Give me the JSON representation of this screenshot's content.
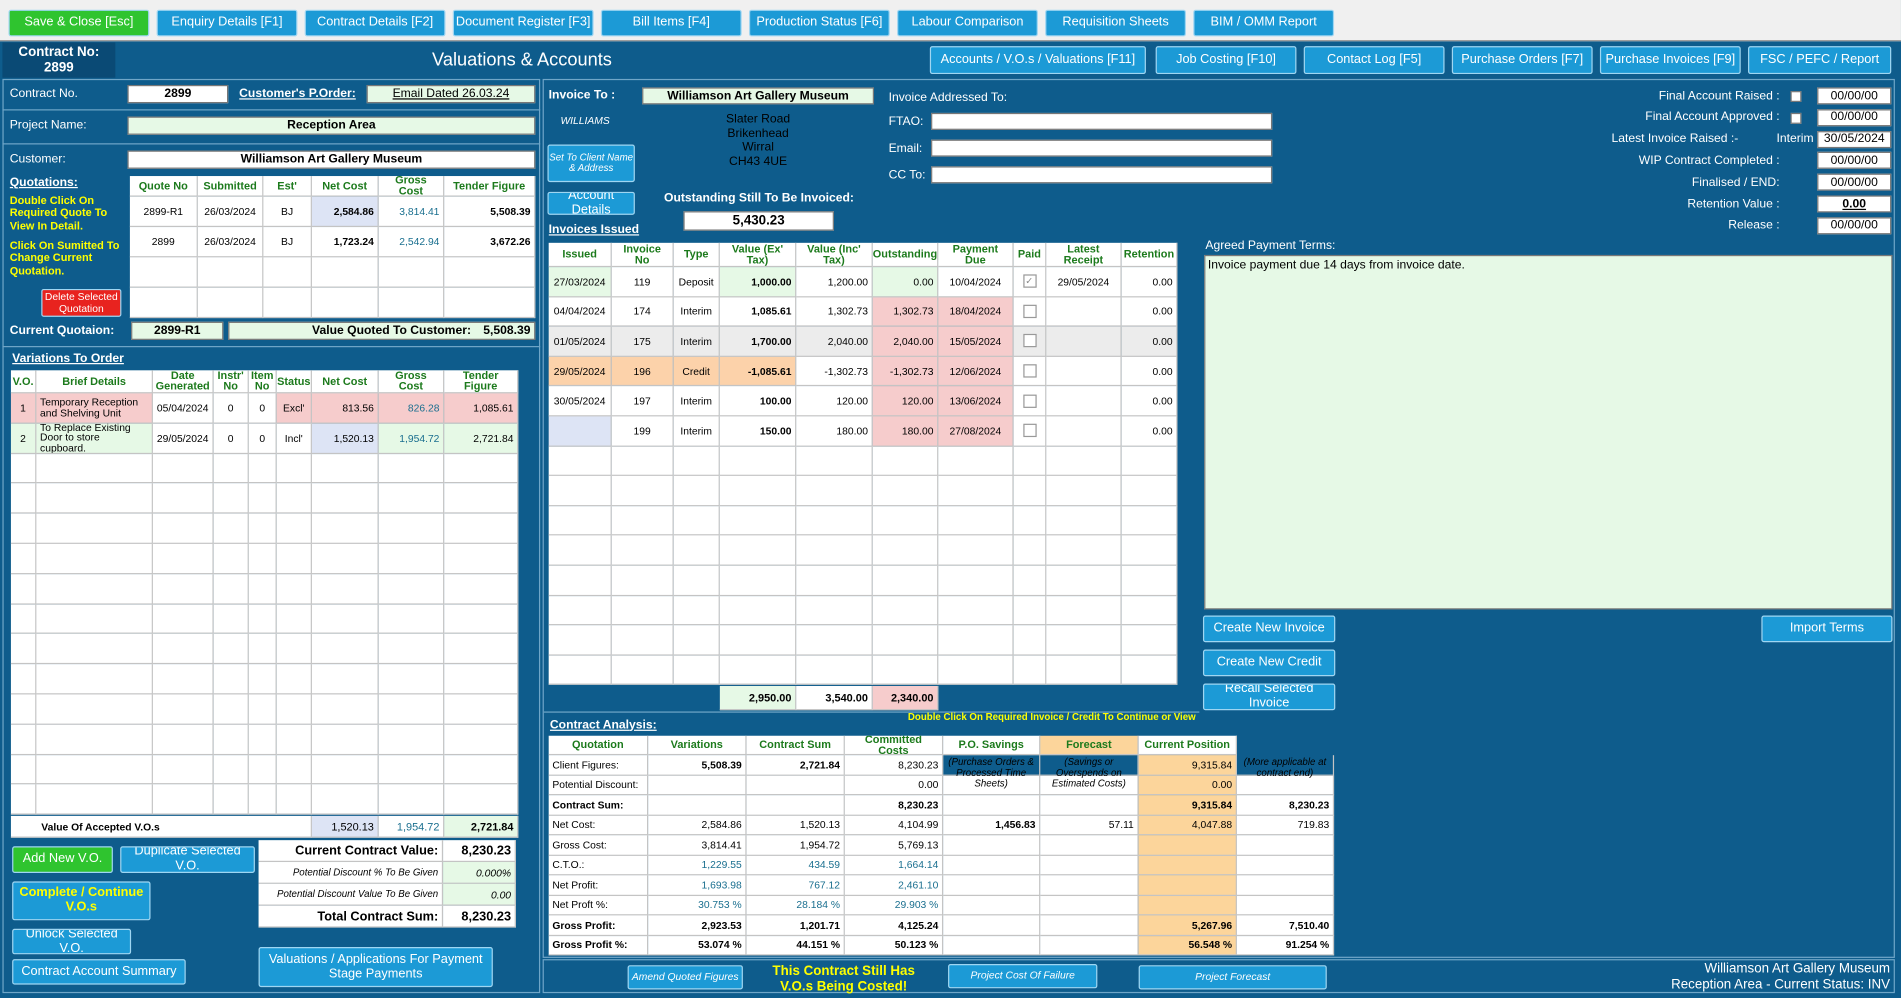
{
  "toolbar": [
    "Save & Close [Esc]",
    "Enquiry Details [F1]",
    "Contract Details [F2]",
    "Document Register [F3]",
    "Bill Items [F4]",
    "Production Status [F6]",
    "Labour Comparison",
    "Requisition Sheets",
    "BIM / OMM Report"
  ],
  "header": {
    "contract_no_label": "Contract No:",
    "contract_no": "2899",
    "title": "Valuations & Accounts",
    "tabs": [
      "Accounts / V.O.s / Valuations [F11]",
      "Job Costing [F10]",
      "Contact Log [F5]",
      "Purchase Orders [F7]",
      "Purchase Invoices [F9]",
      "FSC / PEFC / Report"
    ]
  },
  "contract": {
    "no_label": "Contract No.",
    "no": "2899",
    "porder_label": "Customer's P.Order:",
    "porder": "Email Dated 26.03.24",
    "project_label": "Project Name:",
    "project": "Reception Area",
    "customer_label": "Customer:",
    "customer": "Williamson Art Gallery Museum"
  },
  "quotations": {
    "title": "Quotations:",
    "help_view": "Double Click On Required Quote To View In Detail.",
    "help_change": "Click On Sumitted To Change Current Quotation.",
    "delete_button": "Delete Selected Quotation",
    "columns": [
      "Quote No",
      "Submitted",
      "Est'",
      "Net Cost",
      "Gross Cost",
      "Tender Figure"
    ],
    "rows": [
      [
        "2899-R1",
        "26/03/2024",
        "BJ",
        "2,584.86",
        "3,814.41",
        "5,508.39"
      ],
      [
        "2899",
        "26/03/2024",
        "BJ",
        "1,723.24",
        "2,542.94",
        "3,672.26"
      ]
    ]
  },
  "current_quote": {
    "label": "Current Quotaion:",
    "value": "2899-R1",
    "quoted_label": "Value Quoted To Customer:",
    "quoted_value": "5,508.39"
  },
  "variations": {
    "title": "Variations To Order",
    "columns": [
      "V.O.",
      "Brief Details",
      "Date Generated",
      "Instr' No",
      "Item No",
      "Status",
      "Net Cost",
      "Gross Cost",
      "Tender Figure"
    ],
    "rows": [
      [
        "1",
        "Temporary Reception and Shelving Unit",
        "05/04/2024",
        "0",
        "0",
        "Excl'",
        "813.56",
        "826.28",
        "1,085.61"
      ],
      [
        "2",
        "To Replace Existing Door to store cupboard.",
        "29/05/2024",
        "0",
        "0",
        "Incl'",
        "1,520.13",
        "1,954.72",
        "2,721.84"
      ]
    ],
    "total_label": "Value Of Accepted V.O.s",
    "totals": [
      "1,520.13",
      "1,954.72",
      "2,721.84"
    ]
  },
  "vo_buttons": [
    "Add New V.O.",
    "Duplicate Selected V.O.",
    "Complete / Continue V.O.s",
    "Unlock Selected V.O.",
    "Contract Account Summary",
    "Valuations / Applications For Payment Stage Payments"
  ],
  "contract_value": {
    "rows": [
      [
        "Current Contract Value:",
        "8,230.23"
      ],
      [
        "Potential Discount % To Be Given",
        "0.000%"
      ],
      [
        "Potential Discount Value To Be Given",
        "0.00"
      ],
      [
        "Total Contract Sum:",
        "8,230.23"
      ]
    ]
  },
  "invoice_to": {
    "label": "Invoice To :",
    "name": "Williamson Art Gallery Museum",
    "contact": "WILLIAMS",
    "address": [
      "Slater Road",
      "Brikenhead",
      "Wirral",
      "CH43 4UE"
    ],
    "set_button": "Set To Client Name & Address",
    "account_button": "Account Details",
    "outstanding_label": "Outstanding Still To Be Invoiced:",
    "outstanding": "5,430.23"
  },
  "addressed": {
    "title": "Invoice Addressed To:",
    "ftao": "FTAO:",
    "email": "Email:",
    "cc": "CC To:"
  },
  "invoices": {
    "title": "Invoices Issued",
    "columns": [
      "Issued",
      "Invoice No",
      "Type",
      "Value (Ex' Tax)",
      "Value (Inc' Tax)",
      "Outstanding",
      "Payment Due",
      "Paid",
      "Latest Receipt",
      "Retention"
    ],
    "rows": [
      [
        "27/03/2024",
        "119",
        "Deposit",
        "1,000.00",
        "1,200.00",
        "0.00",
        "10/04/2024",
        true,
        "29/05/2024",
        "0.00"
      ],
      [
        "04/04/2024",
        "174",
        "Interim",
        "1,085.61",
        "1,302.73",
        "1,302.73",
        "18/04/2024",
        false,
        null,
        "0.00"
      ],
      [
        "01/05/2024",
        "175",
        "Interim",
        "1,700.00",
        "2,040.00",
        "2,040.00",
        "15/05/2024",
        false,
        null,
        "0.00"
      ],
      [
        "29/05/2024",
        "196",
        "Credit",
        "-1,085.61",
        "-1,302.73",
        "-1,302.73",
        "12/06/2024",
        false,
        null,
        "0.00"
      ],
      [
        "30/05/2024",
        "197",
        "Interim",
        "100.00",
        "120.00",
        "120.00",
        "13/06/2024",
        false,
        null,
        "0.00"
      ],
      [
        null,
        "199",
        "Interim",
        "150.00",
        "180.00",
        "180.00",
        "27/08/2024",
        false,
        null,
        "0.00"
      ]
    ],
    "totals": [
      "2,950.00",
      "3,540.00",
      "2,340.00"
    ],
    "hint": "Double Click On Required Invoice / Credit To Continue or View"
  },
  "account_dates": {
    "interim": "Interim",
    "rows": [
      [
        "Final Account Raised :",
        "00/00/00"
      ],
      [
        "Final Account Approved :",
        "00/00/00"
      ],
      [
        "Latest Invoice Raised :-",
        "30/05/2024"
      ],
      [
        "WIP Contract Completed :",
        "00/00/00"
      ],
      [
        "Finalised / END:",
        "00/00/00"
      ],
      [
        "Retention Value :",
        "0.00"
      ],
      [
        "Release :",
        "00/00/00"
      ]
    ]
  },
  "terms": {
    "label": "Agreed Payment Terms:",
    "text": "Invoice payment due 14 days from invoice date."
  },
  "invoice_buttons": [
    "Create New Invoice",
    "Create New Credit",
    "Recall Selected Invoice",
    "Import Terms"
  ],
  "analysis": {
    "title": "Contract Analysis:",
    "columns": [
      "Quotation",
      "Variations",
      "Contract Sum",
      "Committed Costs",
      "P.O. Savings",
      "Forecast",
      "Current Position"
    ],
    "rows": [
      [
        "Client Figures:",
        "5,508.39",
        "2,721.84",
        "8,230.23",
        "(Purchase Orders & Processed Time Sheets)",
        "(Savings or Overspends on Estimated Costs)",
        "9,315.84",
        "(More applicable at contract end)"
      ],
      [
        "Potential Discount:",
        null,
        null,
        "0.00",
        null,
        null,
        "0.00",
        null
      ],
      [
        "Contract Sum:",
        null,
        null,
        "8,230.23",
        null,
        null,
        "9,315.84",
        "8,230.23"
      ],
      [
        "Net Cost:",
        "2,584.86",
        "1,520.13",
        "4,104.99",
        "1,456.83",
        "57.11",
        "4,047.88",
        "719.83"
      ],
      [
        "Gross Cost:",
        "3,814.41",
        "1,954.72",
        "5,769.13",
        null,
        null,
        null,
        null
      ],
      [
        "C.T.O.:",
        "1,229.55",
        "434.59",
        "1,664.14",
        null,
        null,
        null,
        null
      ],
      [
        "Net Profit:",
        "1,693.98",
        "767.12",
        "2,461.10",
        null,
        null,
        null,
        null
      ],
      [
        "Net Proft %:",
        "30.753 %",
        "28.184 %",
        "29.903 %",
        null,
        null,
        null,
        null
      ],
      [
        "Gross Profit:",
        "2,923.53",
        "1,201.71",
        "4,125.24",
        null,
        null,
        "5,267.96",
        "7,510.40"
      ],
      [
        "Gross Profit %:",
        "53.074 %",
        "44.151 %",
        "50.123 %",
        null,
        null,
        "56.548 %",
        "91.254 %"
      ]
    ]
  },
  "bottom": {
    "amend": "Amend Quoted Figures",
    "message": [
      "This Contract Still Has",
      "V.O.s Being Costed!"
    ],
    "failure": "Project Cost Of Failure",
    "forecast": "Project Forecast",
    "footer": [
      "Williamson Art Gallery Museum",
      "Reception Area  - Current Status: INV"
    ]
  }
}
